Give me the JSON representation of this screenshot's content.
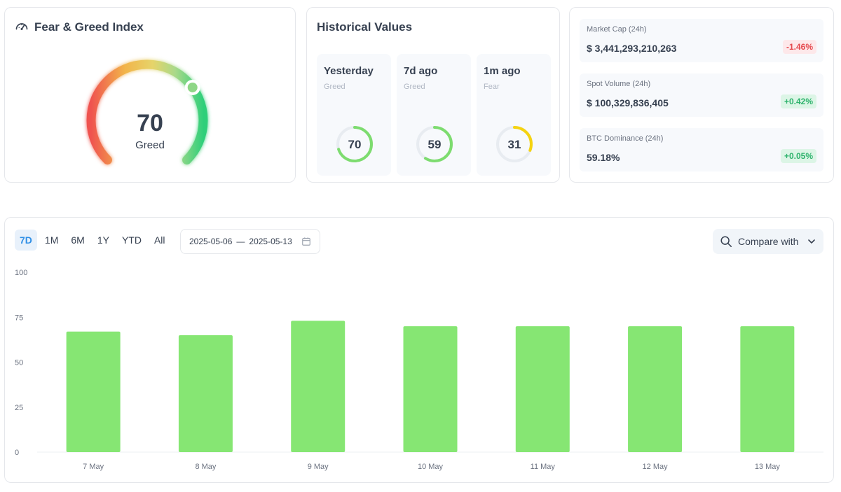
{
  "fear_greed": {
    "title": "Fear & Greed Index",
    "value": "70",
    "label": "Greed",
    "gauge_value_fraction": 0.7
  },
  "historical": {
    "title": "Historical Values",
    "items": [
      {
        "label": "Yesterday",
        "sub": "Greed",
        "value": "70",
        "color": "#7ddc6f"
      },
      {
        "label": "7d ago",
        "sub": "Greed",
        "value": "59",
        "color": "#7ddc6f"
      },
      {
        "label": "1m ago",
        "sub": "Fear",
        "value": "31",
        "color": "#f5d311"
      }
    ]
  },
  "market": {
    "items": [
      {
        "label": "Market Cap (24h)",
        "value": "$ 3,441,293,210,263",
        "change": "-1.46%",
        "trend": "negative"
      },
      {
        "label": "Spot Volume (24h)",
        "value": "$ 100,329,836,405",
        "change": "+0.42%",
        "trend": "positive"
      },
      {
        "label": "BTC Dominance (24h)",
        "value": "59.18%",
        "change": "+0.05%",
        "trend": "positive"
      }
    ]
  },
  "controls": {
    "range_tabs": [
      "7D",
      "1M",
      "6M",
      "1Y",
      "YTD",
      "All"
    ],
    "active_tab": "7D",
    "date_start": "2025-05-06",
    "date_sep": "—",
    "date_end": "2025-05-13",
    "compare_label": "Compare with"
  },
  "colors": {
    "bar": "#86e673",
    "accent": "#2f8fe6",
    "negative": "#e5484d",
    "positive": "#2fb36d"
  },
  "chart_data": {
    "type": "bar",
    "categories": [
      "7 May",
      "8 May",
      "9 May",
      "10 May",
      "11 May",
      "12 May",
      "13 May"
    ],
    "values": [
      67,
      65,
      73,
      70,
      70,
      70,
      70
    ],
    "ylim": [
      0,
      100
    ],
    "yticks": [
      0,
      25,
      50,
      75,
      100
    ],
    "grid": false
  }
}
